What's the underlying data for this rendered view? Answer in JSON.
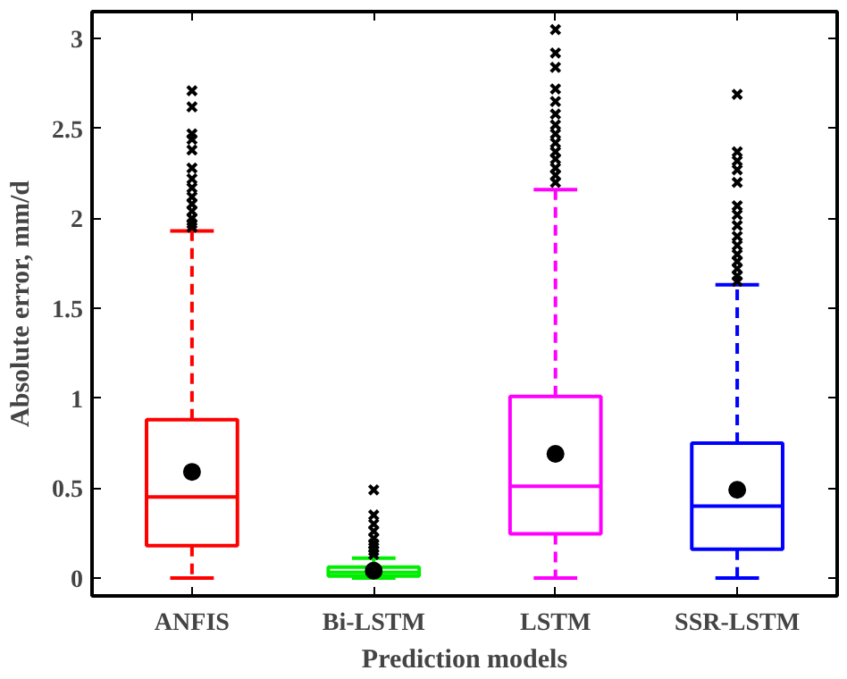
{
  "chart_data": {
    "type": "box",
    "xlabel": "Prediction models",
    "ylabel": "Absolute error, mm/d",
    "categories": [
      "ANFIS",
      "Bi-LSTM",
      "LSTM",
      "SSR-LSTM"
    ],
    "colors": [
      "#ff0000",
      "#00ee00",
      "#ff00ff",
      "#0000ff"
    ],
    "ylim": [
      -0.1,
      3.15
    ],
    "yticks": [
      0,
      0.5,
      1,
      1.5,
      2,
      2.5,
      3
    ],
    "grid": false,
    "marker": "cross",
    "boxes": [
      {
        "low": 0,
        "q1": 0.18,
        "median": 0.45,
        "q3": 0.88,
        "high": 1.93,
        "mean": 0.59,
        "outliers": [
          1.95,
          1.97,
          2.0,
          2.04,
          2.08,
          2.12,
          2.17,
          2.22,
          2.28,
          2.38,
          2.44,
          2.47,
          2.62,
          2.71
        ]
      },
      {
        "low": 0,
        "q1": 0.01,
        "median": 0.03,
        "q3": 0.06,
        "high": 0.11,
        "mean": 0.04,
        "outliers": [
          0.13,
          0.15,
          0.17,
          0.19,
          0.22,
          0.26,
          0.3,
          0.35,
          0.49
        ]
      },
      {
        "low": 0,
        "q1": 0.245,
        "median": 0.51,
        "q3": 1.01,
        "high": 2.16,
        "mean": 0.69,
        "outliers": [
          2.2,
          2.24,
          2.28,
          2.33,
          2.37,
          2.42,
          2.47,
          2.52,
          2.58,
          2.65,
          2.72,
          2.84,
          2.92,
          3.05
        ]
      },
      {
        "low": 0,
        "q1": 0.16,
        "median": 0.4,
        "q3": 0.75,
        "high": 1.63,
        "mean": 0.49,
        "outliers": [
          1.65,
          1.68,
          1.72,
          1.76,
          1.8,
          1.85,
          1.9,
          1.96,
          2.02,
          2.07,
          2.2,
          2.27,
          2.32,
          2.37,
          2.69
        ]
      }
    ]
  }
}
